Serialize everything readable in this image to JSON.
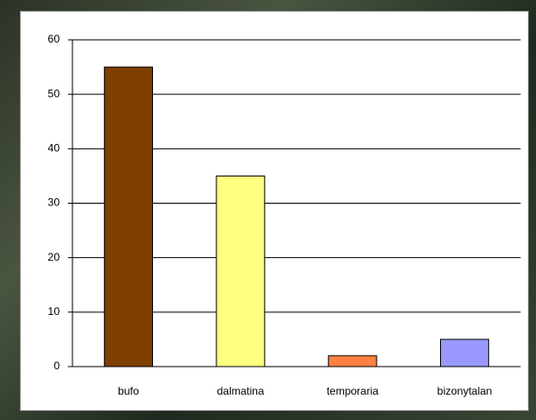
{
  "chart_data": {
    "type": "bar",
    "categories": [
      "bufo",
      "dalmatina",
      "temporaria",
      "bizonytalan"
    ],
    "values": [
      55,
      35,
      2,
      5
    ],
    "colors": [
      "#7f3f00",
      "#ffff80",
      "#ff8040",
      "#9999ff"
    ],
    "ylim": [
      0,
      60
    ],
    "yticks": [
      0,
      10,
      20,
      30,
      40,
      50,
      60
    ],
    "grid": true
  }
}
